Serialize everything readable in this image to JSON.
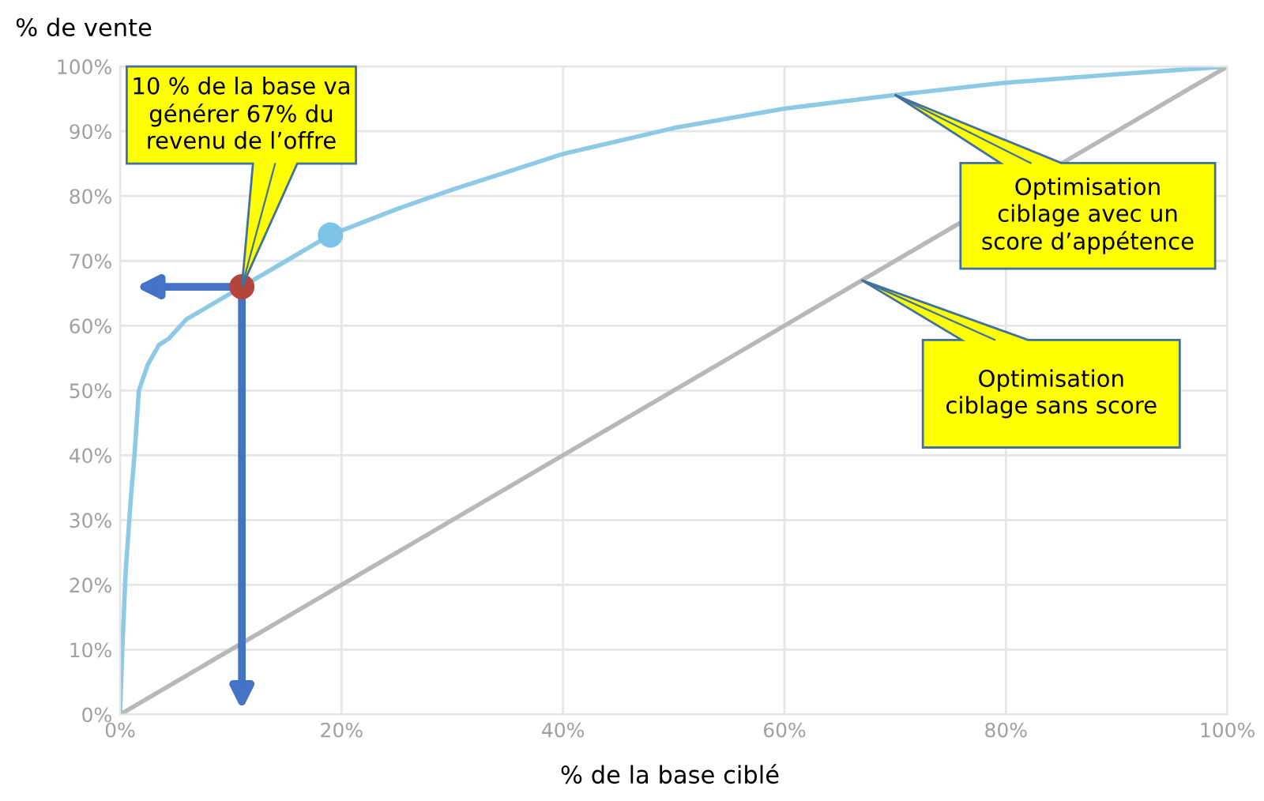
{
  "chart_data": {
    "type": "line",
    "xlabel": "% de la base ciblé",
    "ylabel": "% de vente",
    "xlim": [
      0,
      100
    ],
    "ylim": [
      0,
      100
    ],
    "xticks": [
      {
        "value": 0,
        "label": "0%"
      },
      {
        "value": 20,
        "label": "20%"
      },
      {
        "value": 40,
        "label": "40%"
      },
      {
        "value": 60,
        "label": "60%"
      },
      {
        "value": 80,
        "label": "80%"
      },
      {
        "value": 100,
        "label": "100%"
      }
    ],
    "yticks": [
      {
        "value": 0,
        "label": "0%"
      },
      {
        "value": 10,
        "label": "10%"
      },
      {
        "value": 20,
        "label": "20%"
      },
      {
        "value": 30,
        "label": "30%"
      },
      {
        "value": 40,
        "label": "40%"
      },
      {
        "value": 50,
        "label": "50%"
      },
      {
        "value": 60,
        "label": "60%"
      },
      {
        "value": 70,
        "label": "70%"
      },
      {
        "value": 80,
        "label": "80%"
      },
      {
        "value": 90,
        "label": "90%"
      },
      {
        "value": 100,
        "label": "100%"
      }
    ],
    "grid": true,
    "marker": "none",
    "series": [
      {
        "color": "#8ecae6",
        "x": [
          0,
          0.2,
          0.5,
          1,
          1.3,
          1.7,
          2.5,
          3.5,
          4.4,
          6,
          8,
          11,
          15,
          19,
          25,
          30,
          40,
          50,
          60,
          70,
          80,
          90,
          100
        ],
        "values": [
          0,
          10,
          22,
          34,
          40,
          50,
          54,
          57,
          58,
          61,
          63,
          66,
          70,
          74,
          78,
          81,
          86.5,
          90.5,
          93.5,
          95.6,
          97.5,
          98.8,
          100
        ]
      },
      {
        "color": "#b8b8b8",
        "x": [
          0,
          100
        ],
        "values": [
          0,
          100
        ]
      },
      {
        "type": "scatter",
        "marker": "circle",
        "x": [
          11,
          19
        ],
        "values": [
          66,
          74
        ],
        "colors": [
          "#b5443a",
          "#7cc3e8"
        ]
      }
    ],
    "annotations": [
      {
        "text": "10 % de la base va\ngénérer 67% du\nrevenu de l’offre",
        "x": 11,
        "y": 66
      },
      {
        "text": "Optimisation\nciblage avec un\nscore d’appétence",
        "x": 70,
        "y": 95.6
      },
      {
        "text": "Optimisation\nciblage sans score",
        "x": 67,
        "y": 67
      }
    ]
  }
}
